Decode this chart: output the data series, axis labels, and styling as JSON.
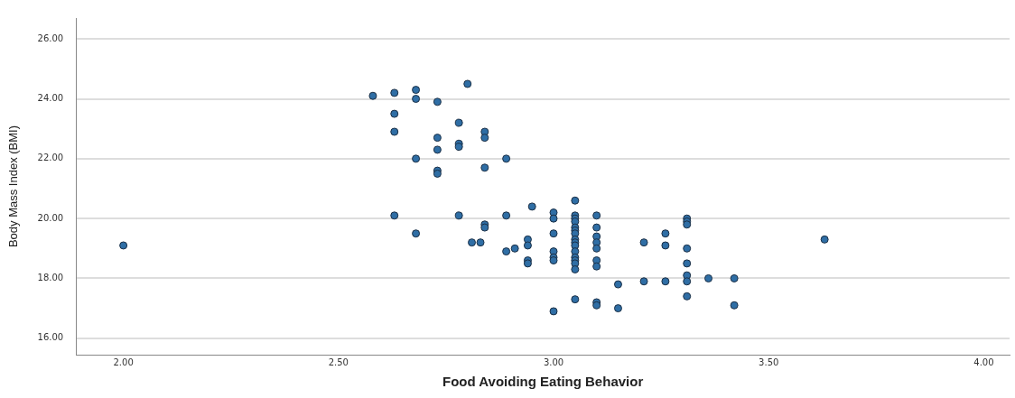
{
  "chart_data": {
    "type": "scatter",
    "xlabel": "Food Avoiding Eating Behavior",
    "ylabel": "Body Mass Index (BMI)",
    "x": [
      2.0,
      2.58,
      2.63,
      2.68,
      2.68,
      2.73,
      2.8,
      2.63,
      2.63,
      2.78,
      2.84,
      2.84,
      2.73,
      2.73,
      2.78,
      2.78,
      2.68,
      2.89,
      2.84,
      2.73,
      2.73,
      2.63,
      2.78,
      2.89,
      2.95,
      2.68,
      2.84,
      2.84,
      2.81,
      2.83,
      2.89,
      2.91,
      2.94,
      2.94,
      2.94,
      2.94,
      3.0,
      3.0,
      3.0,
      3.0,
      3.0,
      3.0,
      3.0,
      3.05,
      3.05,
      3.05,
      3.05,
      3.05,
      3.05,
      3.05,
      3.05,
      3.05,
      3.05,
      3.05,
      3.05,
      3.05,
      3.05,
      3.05,
      3.05,
      3.1,
      3.1,
      3.1,
      3.1,
      3.1,
      3.1,
      3.1,
      3.1,
      3.1,
      3.15,
      3.15,
      3.21,
      3.21,
      3.26,
      3.26,
      3.26,
      3.31,
      3.31,
      3.31,
      3.31,
      3.31,
      3.31,
      3.31,
      3.31,
      3.36,
      3.42,
      3.42,
      3.63
    ],
    "values": [
      19.1,
      24.1,
      24.2,
      24.3,
      24.0,
      23.9,
      24.5,
      23.5,
      22.9,
      23.2,
      22.9,
      22.7,
      22.7,
      22.3,
      22.5,
      22.4,
      22.0,
      22.0,
      21.7,
      21.6,
      21.5,
      20.1,
      20.1,
      20.1,
      20.4,
      19.5,
      19.8,
      19.7,
      19.2,
      19.2,
      18.9,
      19.0,
      19.3,
      19.1,
      18.6,
      18.5,
      20.2,
      20.0,
      19.5,
      18.9,
      18.7,
      18.6,
      16.9,
      20.6,
      20.1,
      20.0,
      19.9,
      19.7,
      19.6,
      19.5,
      19.3,
      19.2,
      19.1,
      18.9,
      18.7,
      18.6,
      18.5,
      18.3,
      17.3,
      20.1,
      19.7,
      19.4,
      19.2,
      19.0,
      18.6,
      18.4,
      17.2,
      17.1,
      17.8,
      17.0,
      19.2,
      17.9,
      19.5,
      19.1,
      17.9,
      20.0,
      19.9,
      19.8,
      19.0,
      18.5,
      18.1,
      17.9,
      17.4,
      18.0,
      18.0,
      17.1,
      19.3
    ],
    "color": "#2f6ea5",
    "marker": "circle",
    "grid": "y",
    "xlim": [
      1.89,
      4.06
    ],
    "ylim": [
      15.45,
      26.7
    ],
    "xticks": [
      {
        "value": 2,
        "label": "2.00"
      },
      {
        "value": 2.5,
        "label": "2.50"
      },
      {
        "value": 3,
        "label": "3.00"
      },
      {
        "value": 3.5,
        "label": "3.50"
      },
      {
        "value": 4,
        "label": "4.00"
      }
    ],
    "yticks": [
      {
        "value": 16,
        "label": "16.00"
      },
      {
        "value": 18,
        "label": "18.00"
      },
      {
        "value": 20,
        "label": "20.00"
      },
      {
        "value": 22,
        "label": "22.00"
      },
      {
        "value": 24,
        "label": "24.00"
      },
      {
        "value": 26,
        "label": "26.00"
      }
    ]
  }
}
